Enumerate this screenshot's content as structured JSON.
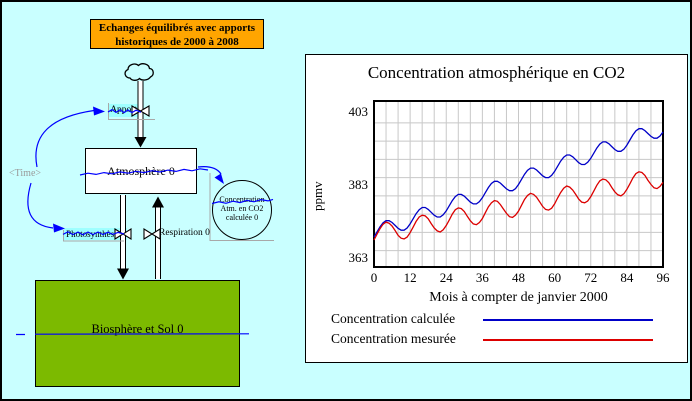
{
  "banner": {
    "line1": "Echanges équilibrés avec apports",
    "line2": "historiques de 2000 à 2008",
    "bg_color": "#FFA500"
  },
  "diagram": {
    "time_reference": "<Time>",
    "apports_flow": "Apports",
    "atmosphere_stock": "Atmosphère 0",
    "photosynthese_flow": "Photosynthèse 0",
    "respiration_flow": "Respiration 0",
    "biosphere_stock": "Biosphère et Sol 0",
    "concentration_aux": {
      "line1": "Concentration",
      "line2": "Atm. en CO2",
      "line3": "calculée 0"
    },
    "stock_color": "#7CBA00",
    "highlight_color": "#9FFFFF",
    "sparkline_color": "#0000FF"
  },
  "chart": {
    "title": "Concentration atmosphérique en CO2",
    "ylabel": "ppmv",
    "xlabel": "Mois à compter de janvier 2000",
    "legend": [
      {
        "label": "Concentration calculée"
      },
      {
        "label": "Concentration mesurée"
      }
    ]
  },
  "chart_data": {
    "type": "line",
    "title": "Concentration atmosphérique en CO2",
    "xlabel": "Mois à compter de janvier 2000",
    "ylabel": "ppmv",
    "x_ticks": [
      0,
      12,
      24,
      36,
      48,
      60,
      72,
      84,
      96
    ],
    "y_ticks": [
      363,
      383,
      403
    ],
    "xlim": [
      0,
      96
    ],
    "ylim": [
      360.5,
      406
    ],
    "x_gridline_step": 4,
    "y_gridline_values": [
      365,
      370,
      375,
      380,
      385,
      390,
      395,
      400
    ],
    "grid_color": "#C8C8C8",
    "x_start": 0,
    "x_step": 1,
    "series": [
      {
        "name": "Concentration calculée",
        "color": "#0000C8",
        "values": [
          368.7,
          370.1,
          371.5,
          372.6,
          373.2,
          373.2,
          372.7,
          371.9,
          371.1,
          370.6,
          370.6,
          371.2,
          372.3,
          373.7,
          375.1,
          376.2,
          376.8,
          376.8,
          376.3,
          375.5,
          374.7,
          374.2,
          374.2,
          374.8,
          375.9,
          377.3,
          378.7,
          379.8,
          380.4,
          380.4,
          379.9,
          379.1,
          378.3,
          377.8,
          377.8,
          378.4,
          379.5,
          380.9,
          382.3,
          383.4,
          384.0,
          384.0,
          383.5,
          382.7,
          381.9,
          381.4,
          381.4,
          382.0,
          383.1,
          384.5,
          385.9,
          387.0,
          387.6,
          387.6,
          387.1,
          386.3,
          385.5,
          385.0,
          385.0,
          385.6,
          386.7,
          388.1,
          389.5,
          390.6,
          391.2,
          391.2,
          390.7,
          389.9,
          389.1,
          388.6,
          388.6,
          389.2,
          390.3,
          391.7,
          393.1,
          394.2,
          394.8,
          394.8,
          394.3,
          393.5,
          392.7,
          392.2,
          392.2,
          392.8,
          393.9,
          395.3,
          396.7,
          397.8,
          398.4,
          398.4,
          397.9,
          397.1,
          396.3,
          395.8,
          395.8,
          396.4,
          397.5
        ]
      },
      {
        "name": "Concentration mesurée",
        "color": "#DC0000",
        "values": [
          367.9,
          369.5,
          371.0,
          372.2,
          372.8,
          372.5,
          371.7,
          370.5,
          369.2,
          368.4,
          368.2,
          368.7,
          369.9,
          371.4,
          373.0,
          374.2,
          374.7,
          374.5,
          373.7,
          372.4,
          371.2,
          370.4,
          370.1,
          370.7,
          371.9,
          373.4,
          375.0,
          376.2,
          376.7,
          376.5,
          375.7,
          374.4,
          373.2,
          372.3,
          372.1,
          372.7,
          373.8,
          375.4,
          377.0,
          378.1,
          378.7,
          378.5,
          377.6,
          376.4,
          375.2,
          374.3,
          374.1,
          374.7,
          375.8,
          377.4,
          379.0,
          380.1,
          380.7,
          380.4,
          379.6,
          378.4,
          377.1,
          376.3,
          376.1,
          376.6,
          377.8,
          379.4,
          380.9,
          382.1,
          382.7,
          382.4,
          381.6,
          380.4,
          379.1,
          378.3,
          378.1,
          378.6,
          379.8,
          381.3,
          382.9,
          384.1,
          384.6,
          384.4,
          383.6,
          382.3,
          381.1,
          380.3,
          380.0,
          380.6,
          381.8,
          383.3,
          384.9,
          386.1,
          386.6,
          386.4,
          385.6,
          384.3,
          383.1,
          382.2,
          382.0,
          382.6,
          383.7
        ]
      }
    ]
  }
}
